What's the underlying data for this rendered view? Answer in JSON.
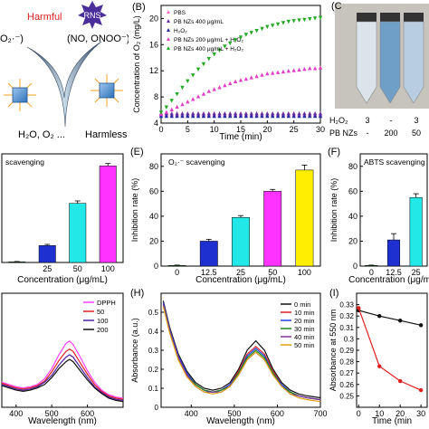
{
  "panels": {
    "a": {
      "harmful": "Harmful",
      "harmless": "Harmless",
      "ros_left": "O₂·⁻)",
      "rns": "RNS",
      "rns_species": "(NO, ONOO⁻)",
      "products": "H₂O, O₂ ..."
    },
    "c": {
      "label": "(C",
      "row1_label": "H₂O₂",
      "row1_values": [
        "3",
        "-",
        "3"
      ],
      "row2_label": "PB NZs",
      "row2_values": [
        "-",
        "200",
        "50"
      ],
      "vial_colors": [
        "#dbe4ea",
        "#6f9fc6",
        "#b9cde0"
      ]
    }
  },
  "chart_data": [
    {
      "panel": "(B)",
      "type": "scatter",
      "xlabel": "Time (min)",
      "ylabel": "Concentration of O₂ (mg/L)",
      "xlim": [
        0,
        30
      ],
      "ylim": [
        4,
        22
      ],
      "xticks": [
        0,
        5,
        10,
        15,
        20,
        25,
        30
      ],
      "yticks": [
        4,
        8,
        12,
        16,
        20
      ],
      "series": [
        {
          "name": "PBS",
          "color": "#ff6fd0",
          "marker": "triangle-up",
          "x": [
            0,
            1,
            2,
            3,
            4,
            5,
            6,
            7,
            8,
            9,
            10,
            11,
            12,
            13,
            14,
            15,
            16,
            17,
            18,
            19,
            20,
            21,
            22,
            23,
            24,
            25,
            26,
            27,
            28,
            29,
            30
          ],
          "y": [
            5.3,
            5.3,
            5.3,
            5.3,
            5.3,
            5.3,
            5.3,
            5.3,
            5.3,
            5.3,
            5.3,
            5.3,
            5.3,
            5.3,
            5.3,
            5.3,
            5.3,
            5.3,
            5.3,
            5.3,
            5.3,
            5.3,
            5.3,
            5.3,
            5.3,
            5.3,
            5.3,
            5.3,
            5.3,
            5.3,
            5.3
          ]
        },
        {
          "name": "PB NZs 400 μg/mL",
          "color": "#7030a0",
          "marker": "triangle-up",
          "x": [
            0,
            1,
            2,
            3,
            4,
            5,
            6,
            7,
            8,
            9,
            10,
            11,
            12,
            13,
            14,
            15,
            16,
            17,
            18,
            19,
            20,
            21,
            22,
            23,
            24,
            25,
            26,
            27,
            28,
            29,
            30
          ],
          "y": [
            5.5,
            5.5,
            5.5,
            5.5,
            5.5,
            5.5,
            5.5,
            5.5,
            5.5,
            5.5,
            5.5,
            5.5,
            5.5,
            5.5,
            5.5,
            5.5,
            5.5,
            5.5,
            5.5,
            5.5,
            5.5,
            5.5,
            5.5,
            5.5,
            5.5,
            5.5,
            5.5,
            5.5,
            5.5,
            5.5,
            5.5
          ]
        },
        {
          "name": "H₂O₂",
          "color": "#2030a0",
          "marker": "triangle-up",
          "x": [
            0,
            1,
            2,
            3,
            4,
            5,
            6,
            7,
            8,
            9,
            10,
            11,
            12,
            13,
            14,
            15,
            16,
            17,
            18,
            19,
            20,
            21,
            22,
            23,
            24,
            25,
            26,
            27,
            28,
            29,
            30
          ],
          "y": [
            5.1,
            5.1,
            5.1,
            5.1,
            5.1,
            5.1,
            5.1,
            5.1,
            5.1,
            5.1,
            5.1,
            5.1,
            5.1,
            5.1,
            5.1,
            5.1,
            5.1,
            5.1,
            5.1,
            5.1,
            5.1,
            5.1,
            5.1,
            5.1,
            5.1,
            5.1,
            5.1,
            5.1,
            5.1,
            5.1,
            5.1
          ]
        },
        {
          "name": "PB NZs 200 μg/mL + H₂O₂",
          "color": "#e040c8",
          "marker": "triangle-up",
          "x": [
            0,
            1,
            2,
            3,
            4,
            5,
            6,
            7,
            8,
            9,
            10,
            11,
            12,
            13,
            14,
            15,
            16,
            17,
            18,
            19,
            20,
            21,
            22,
            23,
            24,
            25,
            26,
            27,
            28,
            29,
            30
          ],
          "y": [
            5.4,
            5.7,
            6.1,
            6.5,
            6.9,
            7.3,
            7.7,
            8.1,
            8.5,
            8.9,
            9.2,
            9.5,
            9.8,
            10.1,
            10.4,
            10.6,
            10.8,
            11.0,
            11.2,
            11.4,
            11.6,
            11.7,
            11.8,
            11.9,
            12.0,
            12.1,
            12.2,
            12.3,
            12.4,
            12.4,
            12.5
          ]
        },
        {
          "name": "PB NZs 400 μg/mL + H₂O₂",
          "color": "#22aa22",
          "marker": "triangle-down",
          "x": [
            0,
            1,
            2,
            3,
            4,
            5,
            6,
            7,
            8,
            9,
            10,
            11,
            12,
            13,
            14,
            15,
            16,
            17,
            18,
            19,
            20,
            21,
            22,
            23,
            24,
            25,
            26,
            27,
            28,
            29,
            30
          ],
          "y": [
            5.6,
            6.4,
            7.4,
            8.4,
            9.4,
            10.4,
            11.3,
            12.2,
            13.0,
            13.8,
            14.5,
            15.1,
            15.7,
            16.2,
            16.7,
            17.1,
            17.5,
            17.8,
            18.1,
            18.4,
            18.7,
            18.9,
            19.1,
            19.3,
            19.5,
            19.6,
            19.7,
            19.8,
            19.9,
            20.0,
            20.1
          ]
        }
      ]
    },
    {
      "panel": "",
      "type": "bar",
      "title": "scavenging",
      "xlabel": "Concentration (μg/mL)",
      "ylabel": "",
      "categories": [
        "",
        "25",
        "50",
        "100"
      ],
      "values": [
        0.5,
        14,
        49,
        80
      ],
      "errors": [
        0.3,
        1,
        2,
        2
      ],
      "ylim": [
        0,
        90
      ],
      "colors": [
        "#1a8a1a",
        "#1f30d0",
        "#22e8e8",
        "#ff33ff"
      ]
    },
    {
      "panel": "(E)",
      "type": "bar",
      "title": "O₂·⁻ scavenging",
      "xlabel": "Concentration (μg/mL)",
      "ylabel": "Inhibition rate (%)",
      "categories": [
        "0",
        "12.5",
        "25",
        "50",
        "100"
      ],
      "values": [
        0.5,
        20,
        39,
        60,
        77
      ],
      "errors": [
        0.3,
        1.5,
        1.5,
        1.5,
        4
      ],
      "ylim": [
        0,
        90
      ],
      "yticks": [
        0,
        20,
        40,
        60,
        80
      ],
      "colors": [
        "#1a8a1a",
        "#1f30d0",
        "#22e8e8",
        "#ff33ff",
        "#ffee00"
      ]
    },
    {
      "panel": "(F)",
      "type": "bar",
      "title": "ABTS scavenging",
      "xlabel": "Concentration (μg/mL)",
      "ylabel": "Inhibition rate (%)",
      "categories": [
        "0",
        "12.5",
        "25"
      ],
      "values": [
        0.5,
        21,
        55
      ],
      "errors": [
        0.3,
        5,
        3
      ],
      "ylim": [
        0,
        90
      ],
      "yticks": [
        0,
        20,
        40,
        60,
        80
      ],
      "colors": [
        "#1a8a1a",
        "#1f30d0",
        "#22e8e8"
      ]
    },
    {
      "panel": "",
      "type": "line",
      "xlabel": "Wavelength (nm)",
      "ylabel": "",
      "xlim": [
        360,
        700
      ],
      "xticks": [
        400,
        500,
        600
      ],
      "ylim": [
        0,
        1
      ],
      "x": [
        360,
        380,
        400,
        420,
        440,
        460,
        480,
        500,
        520,
        540,
        550,
        560,
        580,
        600,
        620,
        640,
        660,
        680,
        700
      ],
      "series": [
        {
          "name": "DPPH",
          "color": "#ff40ff",
          "y": [
            0.22,
            0.2,
            0.18,
            0.17,
            0.18,
            0.2,
            0.25,
            0.34,
            0.46,
            0.56,
            0.58,
            0.55,
            0.44,
            0.32,
            0.22,
            0.15,
            0.11,
            0.09,
            0.08
          ]
        },
        {
          "name": "50",
          "color": "#e02020",
          "y": [
            0.21,
            0.19,
            0.17,
            0.16,
            0.17,
            0.19,
            0.23,
            0.31,
            0.41,
            0.49,
            0.51,
            0.49,
            0.39,
            0.29,
            0.2,
            0.14,
            0.1,
            0.08,
            0.07
          ]
        },
        {
          "name": "100",
          "color": "#5020a0",
          "y": [
            0.2,
            0.18,
            0.16,
            0.15,
            0.16,
            0.18,
            0.22,
            0.28,
            0.37,
            0.44,
            0.46,
            0.44,
            0.35,
            0.26,
            0.18,
            0.13,
            0.09,
            0.07,
            0.06
          ]
        },
        {
          "name": "200",
          "color": "#111111",
          "y": [
            0.19,
            0.17,
            0.15,
            0.14,
            0.15,
            0.17,
            0.2,
            0.26,
            0.34,
            0.4,
            0.42,
            0.4,
            0.32,
            0.24,
            0.17,
            0.12,
            0.08,
            0.06,
            0.05
          ]
        }
      ]
    },
    {
      "panel": "(H)",
      "type": "line",
      "xlabel": "Wavelength (nm)",
      "ylabel": "Absorbance (a.u.)",
      "xlim": [
        330,
        700
      ],
      "xticks": [
        400,
        500,
        600,
        700
      ],
      "ylim": [
        0,
        0.6
      ],
      "yticks": [
        0.0,
        0.1,
        0.2,
        0.3,
        0.4,
        0.5
      ],
      "x": [
        335,
        350,
        370,
        390,
        410,
        430,
        450,
        470,
        490,
        510,
        530,
        550,
        570,
        590,
        610,
        630,
        650,
        670,
        700
      ],
      "series": [
        {
          "name": "0 min",
          "color": "#111111",
          "y": [
            0.56,
            0.42,
            0.28,
            0.19,
            0.13,
            0.1,
            0.09,
            0.1,
            0.13,
            0.2,
            0.3,
            0.35,
            0.3,
            0.2,
            0.13,
            0.09,
            0.07,
            0.06,
            0.05
          ]
        },
        {
          "name": "10 min",
          "color": "#e02020",
          "y": [
            0.55,
            0.41,
            0.27,
            0.18,
            0.12,
            0.09,
            0.08,
            0.09,
            0.12,
            0.19,
            0.28,
            0.32,
            0.28,
            0.19,
            0.12,
            0.08,
            0.06,
            0.05,
            0.04
          ]
        },
        {
          "name": "20 min",
          "color": "#2040e0",
          "y": [
            0.55,
            0.41,
            0.27,
            0.18,
            0.12,
            0.09,
            0.08,
            0.09,
            0.12,
            0.18,
            0.27,
            0.31,
            0.27,
            0.18,
            0.12,
            0.08,
            0.06,
            0.05,
            0.04
          ]
        },
        {
          "name": "30 min",
          "color": "#1a8a1a",
          "y": [
            0.54,
            0.4,
            0.26,
            0.17,
            0.12,
            0.09,
            0.08,
            0.09,
            0.11,
            0.18,
            0.26,
            0.3,
            0.26,
            0.18,
            0.11,
            0.08,
            0.06,
            0.05,
            0.04
          ]
        },
        {
          "name": "40 min",
          "color": "#8030a0",
          "y": [
            0.54,
            0.4,
            0.26,
            0.17,
            0.11,
            0.08,
            0.08,
            0.08,
            0.11,
            0.17,
            0.25,
            0.29,
            0.25,
            0.17,
            0.11,
            0.07,
            0.06,
            0.05,
            0.04
          ]
        },
        {
          "name": "50 min",
          "color": "#e0a010",
          "y": [
            0.53,
            0.39,
            0.25,
            0.16,
            0.11,
            0.08,
            0.07,
            0.08,
            0.11,
            0.17,
            0.25,
            0.29,
            0.25,
            0.17,
            0.11,
            0.07,
            0.05,
            0.04,
            0.03
          ]
        }
      ]
    },
    {
      "panel": "(I)",
      "type": "line",
      "xlabel": "Time (min",
      "ylabel": "Absorbance at 550 nm",
      "xlim": [
        -1,
        33
      ],
      "xticks": [
        0,
        10,
        20,
        30
      ],
      "ylim": [
        0.24,
        0.34
      ],
      "yticks": [
        0.25,
        0.26,
        0.27,
        0.28,
        0.29,
        0.3,
        0.31,
        0.32,
        0.33
      ],
      "series": [
        {
          "name": "",
          "color": "#111111",
          "x": [
            0,
            10,
            20,
            30
          ],
          "y": [
            0.325,
            0.32,
            0.316,
            0.312
          ]
        },
        {
          "name": "",
          "color": "#e02020",
          "x": [
            0,
            10,
            20,
            30
          ],
          "y": [
            0.327,
            0.276,
            0.263,
            0.255
          ]
        }
      ]
    }
  ]
}
